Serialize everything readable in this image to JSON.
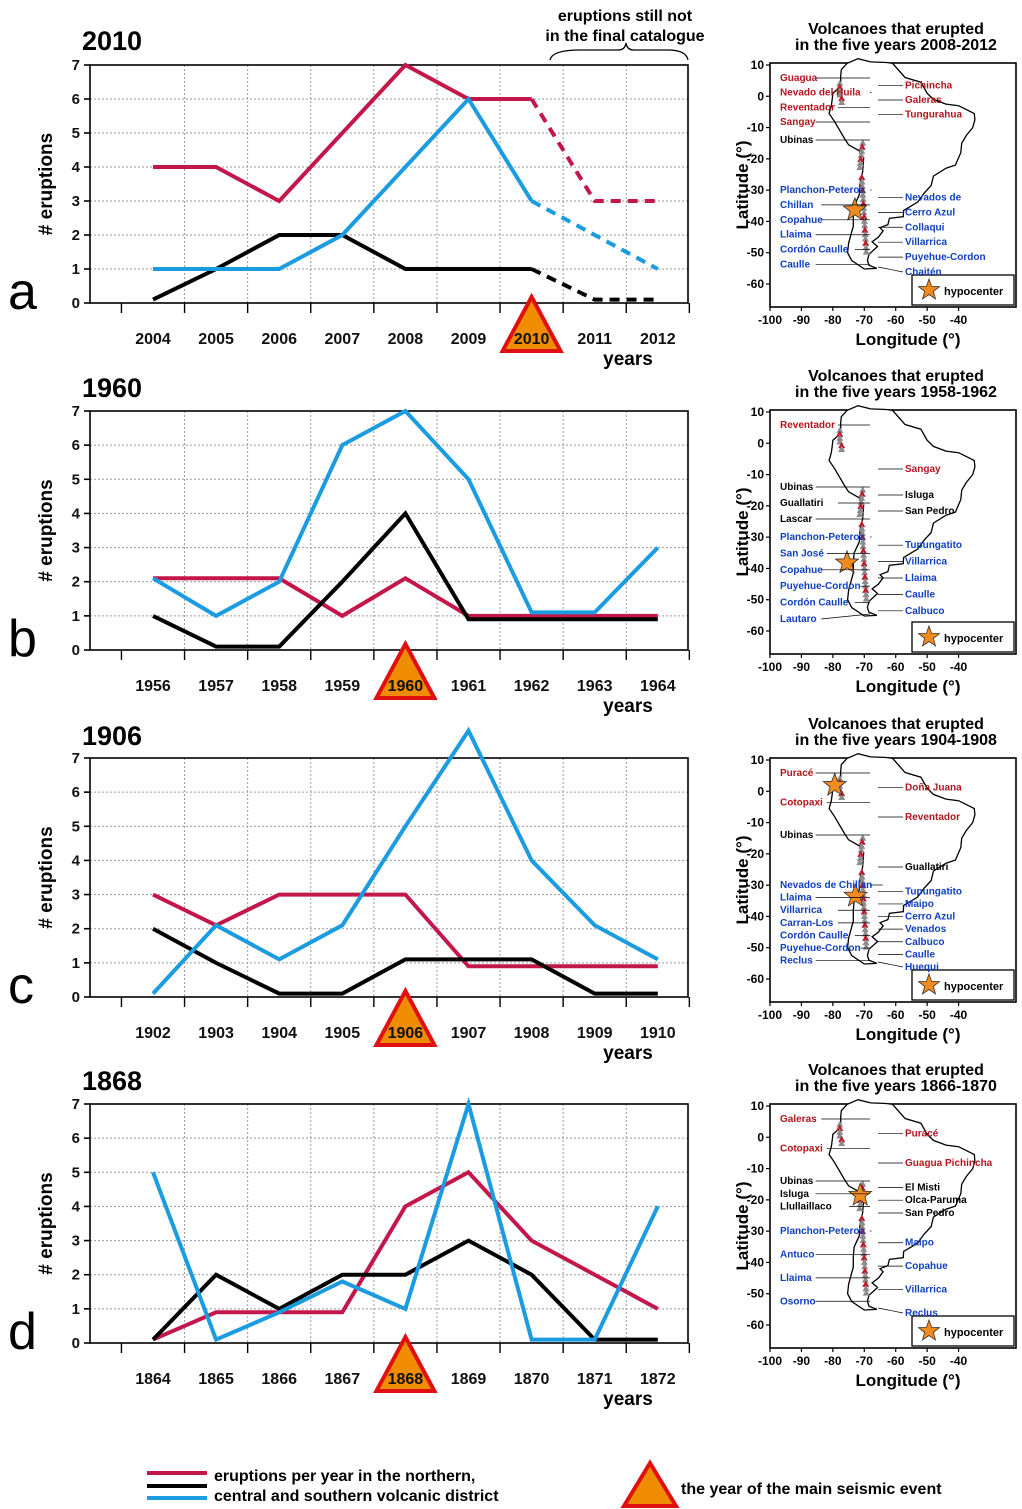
{
  "chart_data": [
    {
      "type": "line",
      "panel": "a",
      "title": "2010",
      "ylabel": "# eruptions",
      "xlabel": "years",
      "ylim": [
        0,
        7
      ],
      "x": [
        "2004",
        "2005",
        "2006",
        "2007",
        "2008",
        "2009",
        "2010",
        "2011",
        "2012"
      ],
      "event_year": "2010",
      "dashed_from_index": 6,
      "annotation": [
        "eruptions still not",
        "in the final catalogue"
      ],
      "series": [
        {
          "color": "#c3174a",
          "values": [
            4,
            4,
            3,
            5,
            7,
            6,
            6,
            3,
            3
          ]
        },
        {
          "color": "#000000",
          "values": [
            0.1,
            1,
            2,
            2,
            1,
            1,
            1,
            0.1,
            0.1
          ]
        },
        {
          "color": "#1b9be0",
          "values": [
            1,
            1,
            1,
            2,
            4,
            6,
            3,
            2,
            1
          ]
        }
      ]
    },
    {
      "type": "line",
      "panel": "b",
      "title": "1960",
      "ylabel": "# eruptions",
      "xlabel": "years",
      "ylim": [
        0,
        7
      ],
      "x": [
        "1956",
        "1957",
        "1958",
        "1959",
        "1960",
        "1961",
        "1962",
        "1963",
        "1964"
      ],
      "event_year": "1960",
      "series": [
        {
          "color": "#c3174a",
          "values": [
            2.1,
            2.1,
            2.1,
            1,
            2.1,
            1,
            1,
            1,
            1
          ]
        },
        {
          "color": "#000000",
          "values": [
            1,
            0.1,
            0.1,
            2,
            4,
            0.9,
            0.9,
            0.9,
            0.9
          ]
        },
        {
          "color": "#1b9be0",
          "values": [
            2.1,
            1,
            2,
            6,
            7,
            5,
            1.1,
            1.1,
            3
          ]
        }
      ]
    },
    {
      "type": "line",
      "panel": "c",
      "title": "1906",
      "ylabel": "# eruptions",
      "xlabel": "years",
      "ylim": [
        0,
        7
      ],
      "x": [
        "1902",
        "1903",
        "1904",
        "1905",
        "1906",
        "1907",
        "1908",
        "1909",
        "1910"
      ],
      "event_year": "1906",
      "series": [
        {
          "color": "#c3174a",
          "values": [
            3,
            2.1,
            3,
            3,
            3,
            0.9,
            0.9,
            0.9,
            0.9
          ]
        },
        {
          "color": "#000000",
          "values": [
            2,
            1,
            0.1,
            0.1,
            1.1,
            1.1,
            1.1,
            0.1,
            0.1
          ]
        },
        {
          "color": "#1b9be0",
          "values": [
            0.1,
            2.1,
            1.1,
            2.1,
            5,
            7.8,
            4,
            2.1,
            1.1
          ]
        }
      ]
    },
    {
      "type": "line",
      "panel": "d",
      "title": "1868",
      "ylabel": "# eruptions",
      "xlabel": "years",
      "ylim": [
        0,
        7
      ],
      "x": [
        "1864",
        "1865",
        "1866",
        "1867",
        "1868",
        "1869",
        "1870",
        "1871",
        "1872"
      ],
      "event_year": "1868",
      "series": [
        {
          "color": "#c3174a",
          "values": [
            0.1,
            0.9,
            0.9,
            0.9,
            4,
            5,
            3,
            2,
            1
          ]
        },
        {
          "color": "#000000",
          "values": [
            0.1,
            2,
            1,
            2,
            2,
            3,
            2,
            0.1,
            0.1
          ]
        },
        {
          "color": "#1b9be0",
          "values": [
            5,
            0.1,
            0.9,
            1.8,
            1,
            7,
            0.1,
            0.1,
            4
          ]
        }
      ]
    }
  ],
  "maps": [
    {
      "title_lines": [
        "Volcanoes that erupted",
        "in the five years 2008-2012"
      ],
      "hypocenter": [
        -73,
        -36.3
      ],
      "volcanoes": [
        {
          "name": "Guagua",
          "color": "#b3141e"
        },
        {
          "name": "Pichincha",
          "color": "#b3141e"
        },
        {
          "name": "Nevado del Huila",
          "color": "#b3141e"
        },
        {
          "name": "Galeras",
          "color": "#b3141e"
        },
        {
          "name": "Reventador",
          "color": "#b3141e"
        },
        {
          "name": "Tungurahua",
          "color": "#b3141e"
        },
        {
          "name": "Sangay",
          "color": "#b3141e"
        },
        {
          "name": "Ubinas",
          "color": "#000000"
        },
        {
          "name": "Planchon-Peteroa",
          "color": "#1040c0"
        },
        {
          "name": "Nevados de",
          "color": "#1040c0"
        },
        {
          "name": "Chillan",
          "color": "#1040c0"
        },
        {
          "name": "Cerro Azul",
          "color": "#1040c0"
        },
        {
          "name": "Copahue",
          "color": "#1040c0"
        },
        {
          "name": "Collaqui",
          "color": "#1040c0"
        },
        {
          "name": "Llaima",
          "color": "#1040c0"
        },
        {
          "name": "Villarrica",
          "color": "#1040c0"
        },
        {
          "name": "Cordón Caulle",
          "color": "#1040c0"
        },
        {
          "name": "Puyehue-Cordon",
          "color": "#1040c0"
        },
        {
          "name": "Caulle",
          "color": "#1040c0"
        },
        {
          "name": "Chaitén",
          "color": "#1040c0"
        }
      ]
    },
    {
      "title_lines": [
        "Volcanoes that erupted",
        "in the five years 1958-1962"
      ],
      "hypocenter": [
        -75.5,
        -38.2
      ],
      "volcanoes": [
        {
          "name": "Reventador",
          "color": "#b3141e"
        },
        {
          "name": "Sangay",
          "color": "#b3141e"
        },
        {
          "name": "Ubinas",
          "color": "#000000"
        },
        {
          "name": "Isluga",
          "color": "#000000"
        },
        {
          "name": "Guallatiri",
          "color": "#000000"
        },
        {
          "name": "San Pedro",
          "color": "#000000"
        },
        {
          "name": "Lascar",
          "color": "#000000"
        },
        {
          "name": "Planchon-Peteroa",
          "color": "#1040c0"
        },
        {
          "name": "Tupungatito",
          "color": "#1040c0"
        },
        {
          "name": "San José",
          "color": "#1040c0"
        },
        {
          "name": "Villarrica",
          "color": "#1040c0"
        },
        {
          "name": "Copahue",
          "color": "#1040c0"
        },
        {
          "name": "Llaima",
          "color": "#1040c0"
        },
        {
          "name": "Puyehue-Cordon",
          "color": "#1040c0"
        },
        {
          "name": "Caulle",
          "color": "#1040c0"
        },
        {
          "name": "Cordón Caulle",
          "color": "#1040c0"
        },
        {
          "name": "Calbuco",
          "color": "#1040c0"
        },
        {
          "name": "Lautaro",
          "color": "#1040c0"
        }
      ]
    },
    {
      "title_lines": [
        "Volcanoes that erupted",
        "in the five years 1904-1908"
      ],
      "hypocenter": [
        -79.4,
        1.9
      ],
      "hypocenter2": [
        -72.8,
        -33.5
      ],
      "volcanoes": [
        {
          "name": "Puracé",
          "color": "#b3141e"
        },
        {
          "name": "Doña Juana",
          "color": "#b3141e"
        },
        {
          "name": "Cotopaxi",
          "color": "#b3141e"
        },
        {
          "name": "Reventador",
          "color": "#b3141e"
        },
        {
          "name": "Ubinas",
          "color": "#000000"
        },
        {
          "name": "Guallatiri",
          "color": "#000000"
        },
        {
          "name": "Nevados de Chillan",
          "color": "#1040c0"
        },
        {
          "name": "Tupungatito",
          "color": "#1040c0"
        },
        {
          "name": "Llaima",
          "color": "#1040c0"
        },
        {
          "name": "Maipo",
          "color": "#1040c0"
        },
        {
          "name": "Villarrica",
          "color": "#1040c0"
        },
        {
          "name": "Cerro Azul",
          "color": "#1040c0"
        },
        {
          "name": "Carran-Los",
          "color": "#1040c0"
        },
        {
          "name": "Venados",
          "color": "#1040c0"
        },
        {
          "name": "Cordón Caulle",
          "color": "#1040c0"
        },
        {
          "name": "Calbuco",
          "color": "#1040c0"
        },
        {
          "name": "Puyehue-Cordon",
          "color": "#1040c0"
        },
        {
          "name": "Caulle",
          "color": "#1040c0"
        },
        {
          "name": "Reclus",
          "color": "#1040c0"
        },
        {
          "name": "Huequi",
          "color": "#1040c0"
        }
      ]
    },
    {
      "title_lines": [
        "Volcanoes that erupted",
        "in the five years 1866-1870"
      ],
      "hypocenter": [
        -71.3,
        -18.5
      ],
      "volcanoes": [
        {
          "name": "Galeras",
          "color": "#b3141e"
        },
        {
          "name": "Puracé",
          "color": "#b3141e"
        },
        {
          "name": "Cotopaxi",
          "color": "#b3141e"
        },
        {
          "name": "Guagua Pichincha",
          "color": "#b3141e"
        },
        {
          "name": "Ubinas",
          "color": "#000000"
        },
        {
          "name": "El Misti",
          "color": "#000000"
        },
        {
          "name": "Isluga",
          "color": "#000000"
        },
        {
          "name": "Olca-Paruma",
          "color": "#000000"
        },
        {
          "name": "Llullaillaco",
          "color": "#000000"
        },
        {
          "name": "San Pedro",
          "color": "#000000"
        },
        {
          "name": "Planchon-Peteroa",
          "color": "#1040c0"
        },
        {
          "name": "Maipo",
          "color": "#1040c0"
        },
        {
          "name": "Antuco",
          "color": "#1040c0"
        },
        {
          "name": "Copahue",
          "color": "#1040c0"
        },
        {
          "name": "Llaima",
          "color": "#1040c0"
        },
        {
          "name": "Villarrica",
          "color": "#1040c0"
        },
        {
          "name": "Osorno",
          "color": "#1040c0"
        },
        {
          "name": "Reclus",
          "color": "#1040c0"
        }
      ]
    }
  ],
  "map_axes": {
    "xlabel": "Longitude (°)",
    "ylabel": "Latitude (°)",
    "xticks": [
      "-100",
      "-90",
      "-80",
      "-70",
      "-60",
      "-50",
      "-40"
    ],
    "yticks": [
      "10",
      "0",
      "-10",
      "-20",
      "-30",
      "-40",
      "-50",
      "-60"
    ],
    "hypocenter_legend": "hypocenter"
  },
  "legend": {
    "line1": "eruptions per year in the northern,",
    "line2": "central and southern volcanic district",
    "triangle": "the year of the main seismic event",
    "colors": {
      "northern": "#c3174a",
      "central": "#000000",
      "southern": "#1b9be0",
      "triangle_fill": "#f08c00",
      "triangle_edge": "#e01010",
      "star": "#f28a1e"
    }
  }
}
